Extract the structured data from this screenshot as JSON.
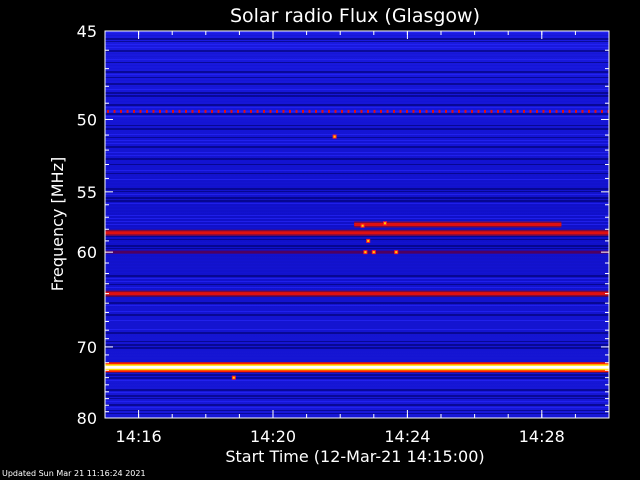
{
  "chart_data": {
    "type": "heatmap",
    "title": "Solar radio Flux (Glasgow)",
    "xlabel": "Start Time (12-Mar-21 14:15:00)",
    "ylabel": "Frequency [MHz]",
    "y_scale": "reciprocal",
    "ylim": [
      45,
      80
    ],
    "xlim": [
      "14:15:00",
      "14:30:00"
    ],
    "x_ticks": [
      "14:16",
      "14:20",
      "14:24",
      "14:28"
    ],
    "y_ticks": [
      45,
      50,
      55,
      60,
      70,
      80
    ],
    "colormap": [
      "#000080",
      "#0000ff",
      "#ff0000",
      "#ffff00",
      "#ffffff"
    ],
    "background_color": "#1010d0",
    "bands": [
      {
        "freq": 49.5,
        "start": "14:15:00",
        "end": "14:30:00",
        "level": "dotted-red"
      },
      {
        "freq": 57.6,
        "start": "14:22:25",
        "end": "14:28:35",
        "level": "red"
      },
      {
        "freq": 58.3,
        "start": "14:15:00",
        "end": "14:30:00",
        "level": "red"
      },
      {
        "freq": 60.0,
        "start": "14:15:00",
        "end": "14:30:00",
        "level": "dark-red"
      },
      {
        "freq": 64.0,
        "start": "14:15:00",
        "end": "14:30:00",
        "level": "red"
      },
      {
        "freq": 72.6,
        "start": "14:15:00",
        "end": "14:30:00",
        "level": "white-hot"
      }
    ],
    "bursts": [
      {
        "time": "14:21:50",
        "freq": 51.1
      },
      {
        "time": "14:22:40",
        "freq": 57.7
      },
      {
        "time": "14:22:45",
        "freq": 60.0
      },
      {
        "time": "14:22:50",
        "freq": 59.0
      },
      {
        "time": "14:23:00",
        "freq": 60.0
      },
      {
        "time": "14:23:20",
        "freq": 57.5
      },
      {
        "time": "14:23:40",
        "freq": 60.0
      },
      {
        "time": "14:18:50",
        "freq": 74.0
      }
    ]
  },
  "footer": {
    "updated": "Updated Sun Mar 21 11:16:24 2021"
  }
}
